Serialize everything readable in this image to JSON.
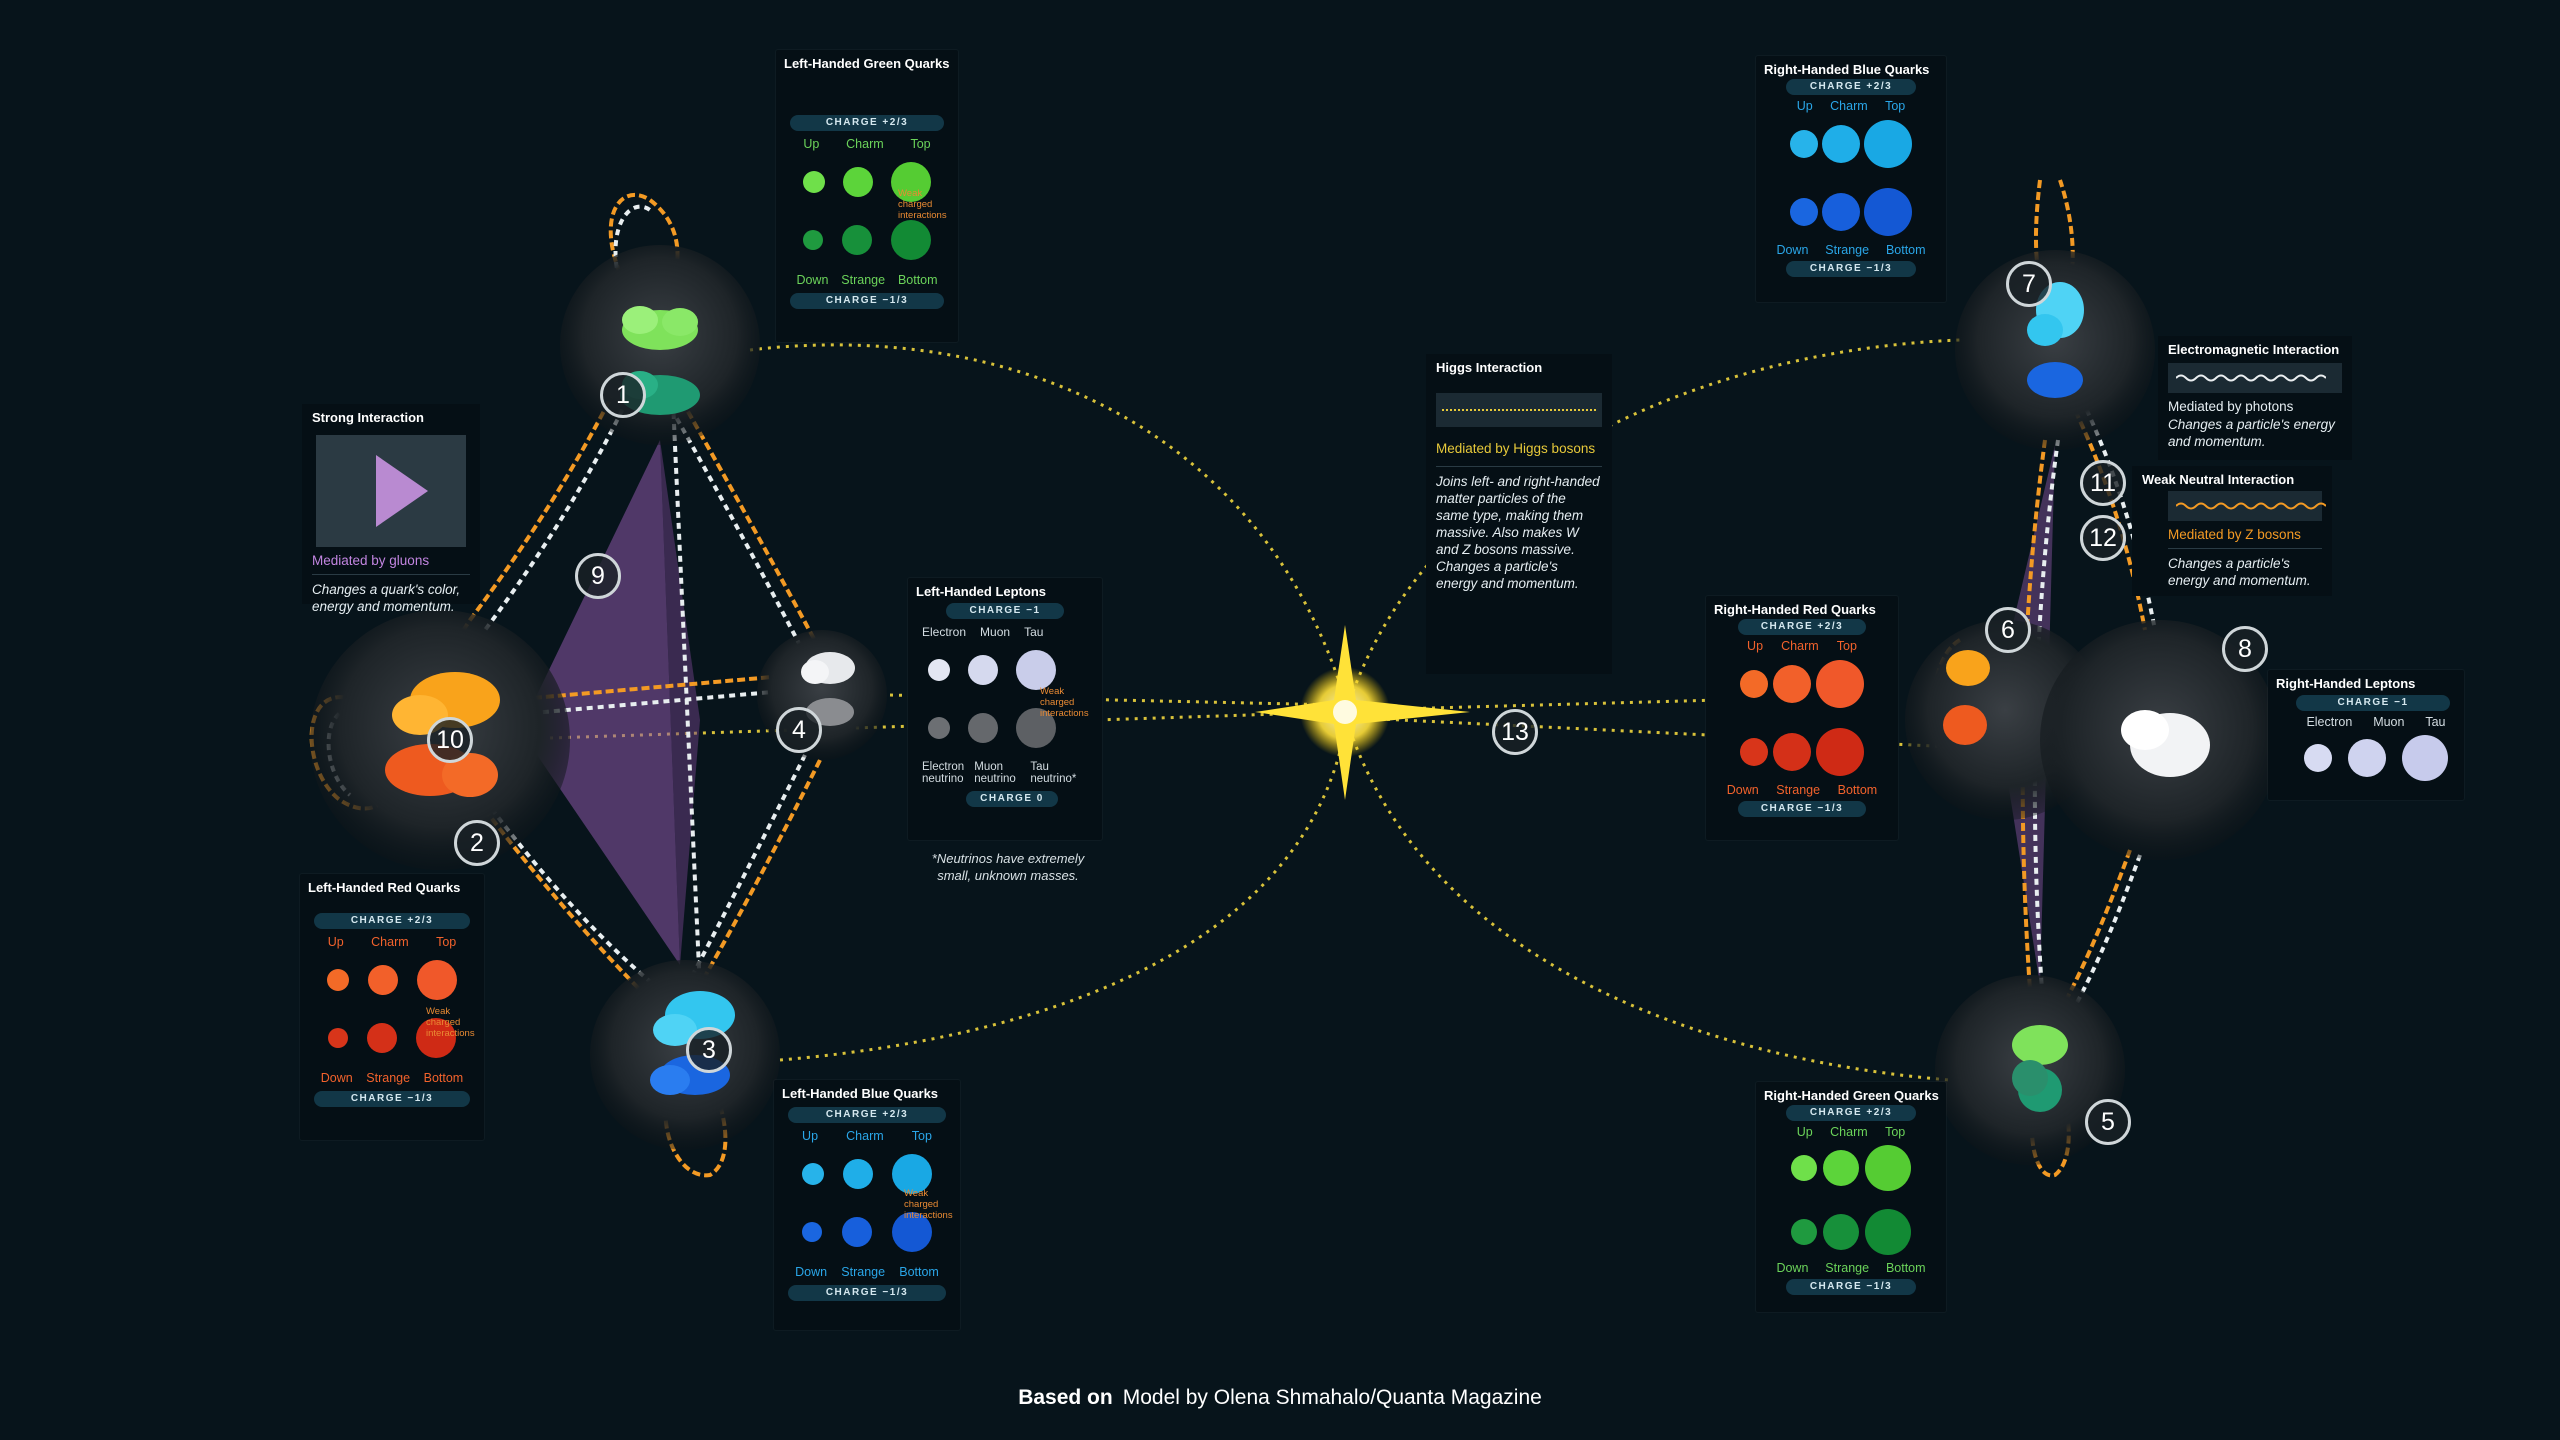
{
  "colors": {
    "background": "#07141b",
    "panel": "#050f15",
    "charge_pill": "#123747",
    "orange_wire": "#f39a24",
    "higgs": "#e7c93a",
    "gluon_plane": "#9a63b5"
  },
  "panels": {
    "lh_green": {
      "title": "Left-Handed Green Quarks",
      "charge_top": "CHARGE +2/3",
      "charge_bottom": "CHARGE −1/3",
      "top_names": [
        "Up",
        "Charm",
        "Top"
      ],
      "bottom_names": [
        "Down",
        "Strange",
        "Bottom"
      ],
      "weak_note": "Weak charged interactions",
      "name_color": "#6bd35a"
    },
    "lh_red": {
      "title": "Left-Handed Red Quarks",
      "charge_top": "CHARGE +2/3",
      "charge_bottom": "CHARGE −1/3",
      "top_names": [
        "Up",
        "Charm",
        "Top"
      ],
      "bottom_names": [
        "Down",
        "Strange",
        "Bottom"
      ],
      "weak_note": "Weak charged interactions",
      "name_color": "#f2622c"
    },
    "lh_blue": {
      "title": "Left-Handed Blue Quarks",
      "charge_top": "CHARGE +2/3",
      "charge_bottom": "CHARGE −1/3",
      "top_names": [
        "Up",
        "Charm",
        "Top"
      ],
      "bottom_names": [
        "Down",
        "Strange",
        "Bottom"
      ],
      "weak_note": "Weak charged interactions",
      "name_color": "#2aa6e8"
    },
    "lh_leptons": {
      "title": "Left-Handed Leptons",
      "charge_top": "CHARGE −1",
      "charge_bottom": "CHARGE 0",
      "top_names": [
        "Electron",
        "Muon",
        "Tau"
      ],
      "bottom_names": [
        "Electron neutrino",
        "Muon neutrino",
        "Tau neutrino*"
      ],
      "weak_note": "Weak charged interactions",
      "footnote": "*Neutrinos have extremely small, unknown masses.",
      "name_color": "#d4dde2"
    },
    "rh_blue": {
      "title": "Right-Handed Blue Quarks",
      "charge_top": "CHARGE +2/3",
      "charge_bottom": "CHARGE −1/3",
      "top_names": [
        "Up",
        "Charm",
        "Top"
      ],
      "bottom_names": [
        "Down",
        "Strange",
        "Bottom"
      ],
      "name_color": "#2aa6e8"
    },
    "rh_red": {
      "title": "Right-Handed Red Quarks",
      "charge_top": "CHARGE +2/3",
      "charge_bottom": "CHARGE −1/3",
      "top_names": [
        "Up",
        "Charm",
        "Top"
      ],
      "bottom_names": [
        "Down",
        "Strange",
        "Bottom"
      ],
      "name_color": "#f2622c"
    },
    "rh_green": {
      "title": "Right-Handed Green Quarks",
      "charge_top": "CHARGE +2/3",
      "charge_bottom": "CHARGE −1/3",
      "top_names": [
        "Up",
        "Charm",
        "Top"
      ],
      "bottom_names": [
        "Down",
        "Strange",
        "Bottom"
      ],
      "name_color": "#6bd35a"
    },
    "rh_leptons": {
      "title": "Right-Handed Leptons",
      "charge_top": "CHARGE −1",
      "top_names": [
        "Electron",
        "Muon",
        "Tau"
      ],
      "name_color": "#d4dde2"
    }
  },
  "interactions": {
    "strong": {
      "title": "Strong Interaction",
      "mediated": "Mediated by gluons",
      "desc": "Changes a quark's color, energy and momentum."
    },
    "higgs": {
      "title": "Higgs Interaction",
      "mediated": "Mediated by Higgs bosons",
      "desc": "Joins left- and right-handed matter particles of the same type, making them massive. Also makes W and Z bosons massive. Changes a particle's energy and momentum."
    },
    "em": {
      "title": "Electromagnetic Interaction",
      "mediated": "Mediated by photons",
      "desc": "Changes a particle's energy and momentum."
    },
    "weak_neutral": {
      "title": "Weak Neutral Interaction",
      "mediated": "Mediated by Z bosons",
      "desc": "Changes a particle's energy and momentum."
    }
  },
  "markers": [
    "1",
    "2",
    "3",
    "4",
    "5",
    "6",
    "7",
    "8",
    "9",
    "10",
    "11",
    "12",
    "13"
  ],
  "footer": {
    "based_on": "Based on",
    "credit": "Model by Olena Shmahalo/Quanta Magazine"
  }
}
